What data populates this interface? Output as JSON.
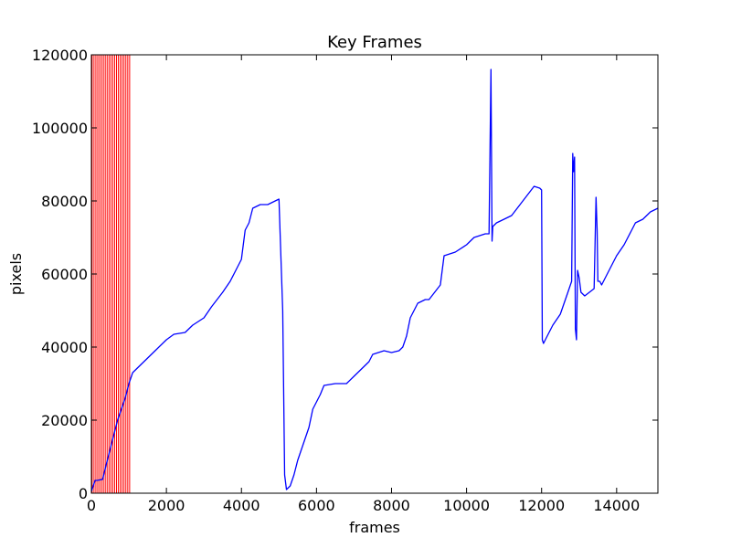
{
  "chart_data": {
    "type": "line",
    "title": "Key Frames",
    "xlabel": "frames",
    "ylabel": "pixels",
    "xlim": [
      0,
      15100
    ],
    "ylim": [
      0,
      120000
    ],
    "x_ticks": [
      0,
      2000,
      4000,
      6000,
      8000,
      10000,
      12000,
      14000
    ],
    "y_ticks": [
      0,
      20000,
      40000,
      60000,
      80000,
      100000,
      120000
    ],
    "grid": false,
    "legend": "none",
    "colors": {
      "line": "#0000ff",
      "key_frames": "#ff0000",
      "axes": "#000000"
    },
    "series": [
      {
        "x": [
          0,
          100,
          150,
          300,
          400,
          500,
          600,
          700,
          800,
          900,
          1000,
          1100,
          1300,
          1500,
          1700,
          2000,
          2200,
          2500,
          2700,
          3000,
          3200,
          3500,
          3700,
          3900,
          4000,
          4100,
          4200,
          4300,
          4500,
          4700,
          4900,
          5000,
          5100,
          5150,
          5200,
          5300,
          5400,
          5500,
          5600,
          5800,
          5900,
          6000,
          6100,
          6200,
          6500,
          6800,
          7000,
          7200,
          7400,
          7500,
          7800,
          8000,
          8200,
          8300,
          8400,
          8500,
          8700,
          8900,
          9000,
          9300,
          9400,
          9700,
          10000,
          10200,
          10500,
          10600,
          10650,
          10680,
          10700,
          10800,
          11000,
          11200,
          11500,
          11800,
          11950,
          12000,
          12020,
          12050,
          12100,
          12300,
          12500,
          12700,
          12800,
          12830,
          12850,
          12880,
          12900,
          12930,
          12960,
          13000,
          13050,
          13150,
          13400,
          13450,
          13480,
          13500,
          13550,
          13600,
          13800,
          14000,
          14200,
          14400,
          14500,
          14700,
          14900,
          15100
        ],
        "y": [
          500,
          3500,
          3500,
          3800,
          8000,
          12000,
          16000,
          20000,
          23000,
          26000,
          30000,
          33000,
          35000,
          37000,
          39000,
          42000,
          43500,
          44000,
          46000,
          48000,
          51000,
          55000,
          58000,
          62000,
          64000,
          72000,
          74000,
          78000,
          79000,
          79000,
          80000,
          80500,
          50000,
          5000,
          1000,
          2000,
          5000,
          9000,
          12000,
          18000,
          23000,
          25000,
          27000,
          29500,
          30000,
          30000,
          32000,
          34000,
          36000,
          38000,
          39000,
          38500,
          39000,
          40000,
          43000,
          48000,
          52000,
          53000,
          53000,
          57000,
          65000,
          66000,
          68000,
          70000,
          71000,
          71000,
          116000,
          69000,
          73000,
          74000,
          75000,
          76000,
          80000,
          84000,
          83500,
          83000,
          42000,
          41000,
          42000,
          46000,
          49000,
          55000,
          58000,
          93000,
          88000,
          92000,
          45000,
          42000,
          61000,
          59000,
          55000,
          54000,
          56000,
          81000,
          72000,
          58000,
          58000,
          57000,
          61000,
          65000,
          68000,
          72000,
          74000,
          75000,
          77000,
          78000
        ]
      }
    ],
    "key_frames": [
      20,
      70,
      120,
      170,
      220,
      270,
      320,
      370,
      420,
      470,
      520,
      570,
      620,
      670,
      720,
      770,
      820,
      870,
      920,
      970,
      1020
    ]
  }
}
